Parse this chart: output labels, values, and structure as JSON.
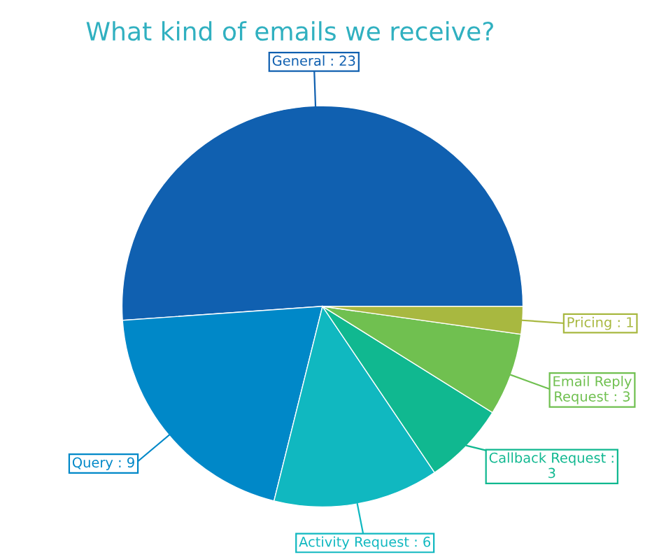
{
  "chart_data": {
    "type": "pie",
    "title": "What kind of emails we receive?",
    "categories": [
      "General : 23",
      "Query : 9",
      "Activity Request : 6",
      "Callback Request :\n3",
      "Email Reply\nRequest : 3",
      "Pricing : 1"
    ],
    "values": [
      23,
      9,
      6,
      3,
      3,
      1
    ],
    "colors": [
      "#1060b0",
      "#0088c8",
      "#10b8c0",
      "#10b890",
      "#70c050",
      "#a8b840"
    ],
    "legend": false
  }
}
